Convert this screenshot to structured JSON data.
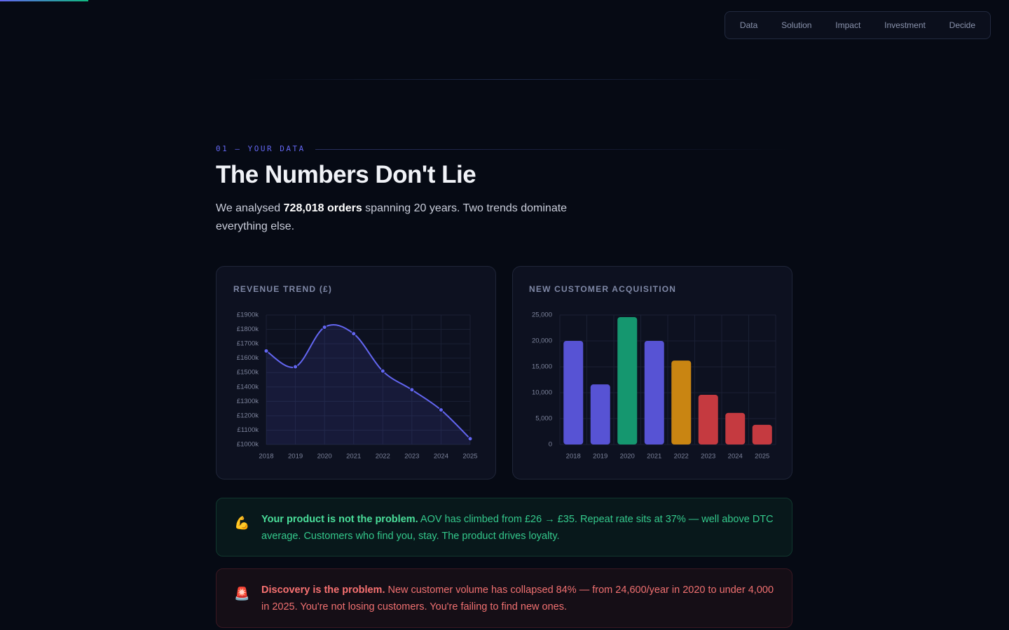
{
  "nav": [
    "Data",
    "Solution",
    "Impact",
    "Investment",
    "Decide"
  ],
  "section_label": "01 — YOUR DATA",
  "title": "The Numbers Don't Lie",
  "intro": [
    "We analysed ",
    "728,018 orders",
    " spanning 20 years. Two trends dominate everything else."
  ],
  "chart_data": [
    {
      "type": "line",
      "title": "REVENUE TREND (£)",
      "categories": [
        "2018",
        "2019",
        "2020",
        "2021",
        "2022",
        "2023",
        "2024",
        "2025"
      ],
      "values": [
        1650,
        1540,
        1815,
        1770,
        1510,
        1380,
        1240,
        1040
      ],
      "color": "#6366f1",
      "ylim": [
        1000,
        1900
      ],
      "yticks": [
        {
          "value": 1000,
          "label": "£1000k"
        },
        {
          "value": 1100,
          "label": "£1100k"
        },
        {
          "value": 1200,
          "label": "£1200k"
        },
        {
          "value": 1300,
          "label": "£1300k"
        },
        {
          "value": 1400,
          "label": "£1400k"
        },
        {
          "value": 1500,
          "label": "£1500k"
        },
        {
          "value": 1600,
          "label": "£1600k"
        },
        {
          "value": 1700,
          "label": "£1700k"
        },
        {
          "value": 1800,
          "label": "£1800k"
        },
        {
          "value": 1900,
          "label": "£1900k"
        }
      ],
      "grid": true
    },
    {
      "type": "bar",
      "title": "NEW CUSTOMER ACQUISITION",
      "categories": [
        "2018",
        "2019",
        "2020",
        "2021",
        "2022",
        "2023",
        "2024",
        "2025"
      ],
      "values": [
        20000,
        11600,
        24600,
        20000,
        16200,
        9600,
        6100,
        3800
      ],
      "colors": [
        "#5753d4",
        "#5753d4",
        "#15976f",
        "#5753d4",
        "#c98512",
        "#c53a40",
        "#c53a40",
        "#c53a40"
      ],
      "ylim": [
        0,
        25000
      ],
      "yticks": [
        0,
        {
          "value": 5000,
          "label": "5,000"
        },
        {
          "value": 10000,
          "label": "10,000"
        },
        {
          "value": 15000,
          "label": "15,000"
        },
        {
          "value": 20000,
          "label": "20,000"
        },
        {
          "value": 25000,
          "label": "25,000"
        }
      ],
      "grid": true
    }
  ],
  "callouts": [
    {
      "icon": "💪",
      "lead": "Your product is not the problem.",
      "text": " AOV has climbed from £26 → £35. Repeat rate sits at 37% — well above DTC average. Customers who find you, stay. The product drives loyalty."
    },
    {
      "icon": "🚨",
      "lead": "Discovery is the problem.",
      "text": " New customer volume has collapsed 84% — from 24,600/year in 2020 to under 4,000 in 2025. You're not losing customers. You're failing to find new ones."
    }
  ]
}
